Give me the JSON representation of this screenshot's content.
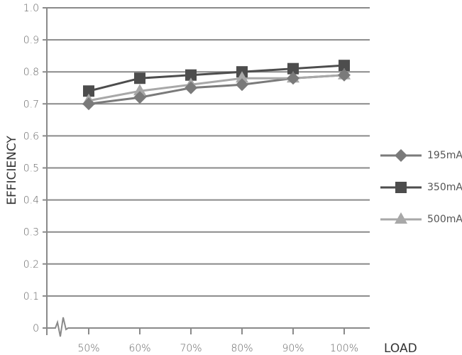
{
  "chart_data": {
    "type": "line",
    "title": "",
    "xlabel": "LOAD",
    "ylabel": "EFFICIENCY",
    "categories": [
      "50%",
      "60%",
      "70%",
      "80%",
      "90%",
      "100%"
    ],
    "ylim": [
      0,
      1.0
    ],
    "yticks": [
      "0",
      "0.1",
      "0.2",
      "0.3",
      "0.4",
      "0.5",
      "0.6",
      "0.7",
      "0.8",
      "0.9",
      "1.0"
    ],
    "grid": "horizontal",
    "legend_position": "right",
    "axis_break": true,
    "series": [
      {
        "name": "195mA",
        "marker": "diamond",
        "color": "#7a7a7a",
        "values": [
          0.7,
          0.72,
          0.75,
          0.76,
          0.78,
          0.79
        ]
      },
      {
        "name": "350mA",
        "marker": "square",
        "color": "#4d4d4d",
        "values": [
          0.74,
          0.78,
          0.79,
          0.8,
          0.81,
          0.82
        ]
      },
      {
        "name": "500mA",
        "marker": "triangle",
        "color": "#a8a8a8",
        "values": [
          0.71,
          0.74,
          0.76,
          0.78,
          0.78,
          0.79
        ]
      }
    ]
  },
  "legend": {
    "items": [
      {
        "label": "195mA"
      },
      {
        "label": "350mA"
      },
      {
        "label": "500mA"
      }
    ]
  }
}
